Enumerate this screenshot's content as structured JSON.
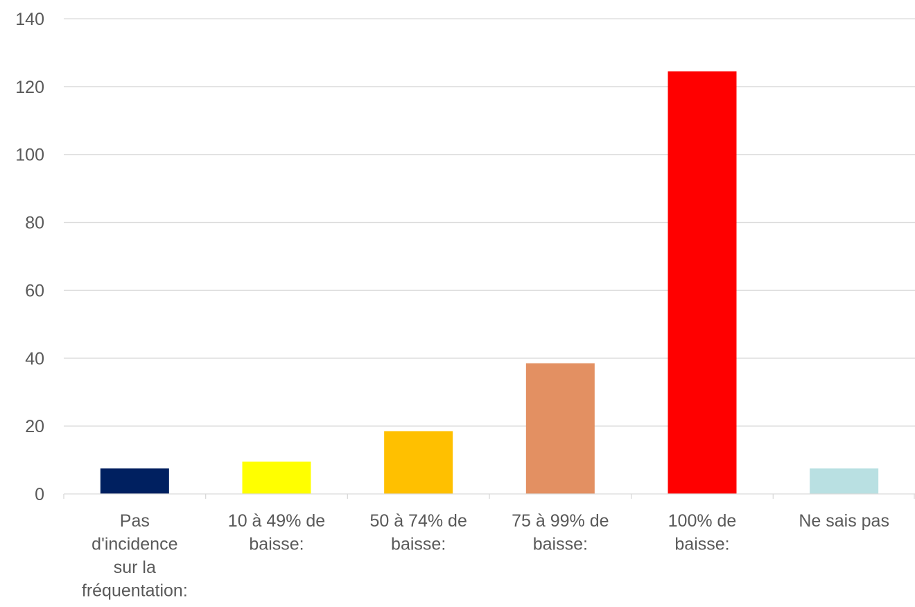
{
  "chart_data": {
    "type": "bar",
    "categories": [
      [
        "Pas",
        "d'incidence",
        "sur la",
        "fréquentation:"
      ],
      [
        "10 à 49% de",
        "baisse:"
      ],
      [
        "50 à 74% de",
        "baisse:"
      ],
      [
        "75 à 99% de",
        "baisse:"
      ],
      [
        "100% de",
        "baisse:"
      ],
      [
        "Ne sais pas"
      ]
    ],
    "values": [
      7.5,
      9.5,
      18.5,
      38.5,
      124.5,
      7.5
    ],
    "colors": [
      "#002060",
      "#ffff00",
      "#ffc000",
      "#e39062",
      "#ff0000",
      "#b9e0e2"
    ],
    "ylim": [
      0,
      140
    ],
    "yticks": [
      0,
      20,
      40,
      60,
      80,
      100,
      120,
      140
    ],
    "grid": true,
    "title": "",
    "xlabel": "",
    "ylabel": ""
  }
}
